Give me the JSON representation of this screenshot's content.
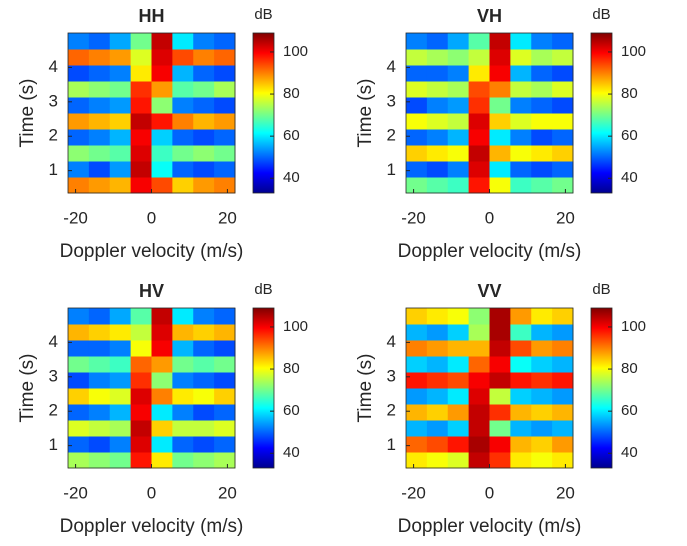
{
  "chart_data": [
    {
      "type": "heatmap",
      "title": "HH",
      "xlabel": "Doppler velocity (m/s)",
      "ylabel": "Time (s)",
      "colorbar_label": "dB",
      "x": [
        -19.25,
        -13.75,
        -8.25,
        -2.75,
        2.75,
        8.25,
        13.75,
        19.25
      ],
      "y": [
        0.58,
        1.05,
        1.51,
        1.98,
        2.44,
        2.91,
        3.37,
        3.84,
        4.3,
        4.77
      ],
      "xlim": [
        -22,
        22
      ],
      "ylim": [
        0.35,
        5
      ],
      "xticks": [
        -20,
        0,
        20
      ],
      "yticks": [
        1,
        2,
        3,
        4
      ],
      "clim": [
        33,
        109
      ],
      "cticks": [
        40,
        60,
        80,
        100
      ],
      "z": [
        [
          90,
          88,
          86,
          100,
          94,
          84,
          88,
          90
        ],
        [
          52,
          48,
          54,
          104,
          62,
          50,
          48,
          50
        ],
        [
          72,
          70,
          68,
          102,
          66,
          70,
          72,
          70
        ],
        [
          50,
          52,
          56,
          100,
          58,
          50,
          48,
          50
        ],
        [
          88,
          86,
          84,
          104,
          98,
          90,
          86,
          88
        ],
        [
          50,
          52,
          54,
          98,
          72,
          52,
          50,
          48
        ],
        [
          74,
          72,
          70,
          96,
          88,
          68,
          70,
          74
        ],
        [
          48,
          50,
          52,
          82,
          100,
          56,
          50,
          48
        ],
        [
          92,
          90,
          88,
          78,
          102,
          94,
          90,
          92
        ],
        [
          52,
          50,
          55,
          70,
          104,
          60,
          52,
          50
        ]
      ]
    },
    {
      "type": "heatmap",
      "title": "VH",
      "xlabel": "Doppler velocity (m/s)",
      "ylabel": "Time (s)",
      "colorbar_label": "dB",
      "x": [
        -19.25,
        -13.75,
        -8.25,
        -2.75,
        2.75,
        8.25,
        13.75,
        19.25
      ],
      "y": [
        0.58,
        1.05,
        1.51,
        1.98,
        2.44,
        2.91,
        3.37,
        3.84,
        4.3,
        4.77
      ],
      "xlim": [
        -22,
        22
      ],
      "ylim": [
        0.35,
        5
      ],
      "xticks": [
        -20,
        0,
        20
      ],
      "yticks": [
        1,
        2,
        3,
        4
      ],
      "clim": [
        33,
        109
      ],
      "cticks": [
        40,
        60,
        80,
        100
      ],
      "z": [
        [
          70,
          68,
          66,
          98,
          80,
          66,
          68,
          70
        ],
        [
          50,
          48,
          52,
          102,
          60,
          50,
          48,
          50
        ],
        [
          84,
          82,
          80,
          104,
          86,
          80,
          82,
          84
        ],
        [
          50,
          52,
          56,
          100,
          60,
          52,
          48,
          50
        ],
        [
          80,
          78,
          76,
          102,
          84,
          78,
          80,
          80
        ],
        [
          48,
          52,
          54,
          96,
          70,
          52,
          50,
          48
        ],
        [
          78,
          76,
          74,
          94,
          90,
          76,
          74,
          78
        ],
        [
          50,
          50,
          52,
          82,
          100,
          56,
          50,
          48
        ],
        [
          76,
          74,
          72,
          76,
          102,
          78,
          74,
          76
        ],
        [
          52,
          50,
          55,
          68,
          104,
          60,
          52,
          50
        ]
      ]
    },
    {
      "type": "heatmap",
      "title": "HV",
      "xlabel": "Doppler velocity (m/s)",
      "ylabel": "Time (s)",
      "colorbar_label": "dB",
      "x": [
        -19.25,
        -13.75,
        -8.25,
        -2.75,
        2.75,
        8.25,
        13.75,
        19.25
      ],
      "y": [
        0.58,
        1.05,
        1.51,
        1.98,
        2.44,
        2.91,
        3.37,
        3.84,
        4.3,
        4.77
      ],
      "xlim": [
        -22,
        22
      ],
      "ylim": [
        0.35,
        5
      ],
      "xticks": [
        -20,
        0,
        20
      ],
      "yticks": [
        1,
        2,
        3,
        4
      ],
      "clim": [
        33,
        109
      ],
      "cticks": [
        40,
        60,
        80,
        100
      ],
      "z": [
        [
          74,
          72,
          70,
          98,
          82,
          70,
          72,
          74
        ],
        [
          50,
          48,
          52,
          102,
          60,
          50,
          48,
          50
        ],
        [
          78,
          76,
          74,
          104,
          84,
          76,
          76,
          78
        ],
        [
          50,
          52,
          56,
          100,
          60,
          52,
          48,
          50
        ],
        [
          84,
          80,
          78,
          102,
          90,
          82,
          80,
          84
        ],
        [
          48,
          52,
          54,
          96,
          72,
          52,
          50,
          48
        ],
        [
          70,
          68,
          66,
          92,
          88,
          70,
          68,
          70
        ],
        [
          50,
          50,
          52,
          80,
          100,
          56,
          50,
          48
        ],
        [
          86,
          84,
          82,
          76,
          102,
          86,
          84,
          86
        ],
        [
          52,
          50,
          55,
          68,
          104,
          60,
          52,
          50
        ]
      ]
    },
    {
      "type": "heatmap",
      "title": "VV",
      "xlabel": "Doppler velocity (m/s)",
      "ylabel": "Time (s)",
      "colorbar_label": "dB",
      "x": [
        -19.25,
        -13.75,
        -8.25,
        -2.75,
        2.75,
        8.25,
        13.75,
        19.25
      ],
      "y": [
        0.58,
        1.05,
        1.51,
        1.98,
        2.44,
        2.91,
        3.37,
        3.84,
        4.3,
        4.77
      ],
      "xlim": [
        -22,
        22
      ],
      "ylim": [
        0.35,
        5
      ],
      "xticks": [
        -20,
        0,
        20
      ],
      "yticks": [
        1,
        2,
        3,
        4
      ],
      "clim": [
        33,
        109
      ],
      "cticks": [
        40,
        60,
        80,
        100
      ],
      "z": [
        [
          82,
          80,
          78,
          104,
          96,
          82,
          80,
          82
        ],
        [
          92,
          94,
          98,
          106,
          100,
          86,
          84,
          88
        ],
        [
          56,
          54,
          58,
          104,
          70,
          56,
          54,
          56
        ],
        [
          86,
          84,
          88,
          104,
          96,
          86,
          84,
          86
        ],
        [
          54,
          56,
          60,
          102,
          76,
          58,
          56,
          54
        ],
        [
          98,
          96,
          94,
          100,
          104,
          98,
          96,
          98
        ],
        [
          58,
          56,
          60,
          92,
          100,
          62,
          58,
          56
        ],
        [
          90,
          88,
          86,
          86,
          104,
          94,
          88,
          90
        ],
        [
          56,
          54,
          58,
          74,
          106,
          66,
          56,
          54
        ],
        [
          84,
          82,
          80,
          72,
          106,
          88,
          82,
          84
        ]
      ]
    }
  ]
}
